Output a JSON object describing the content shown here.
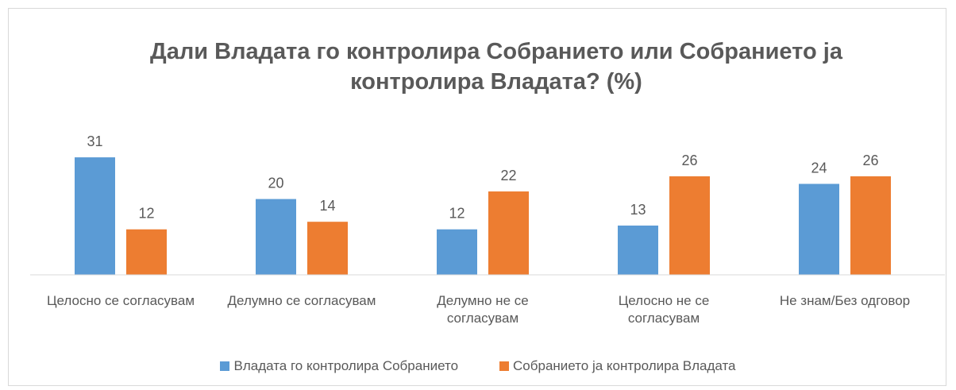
{
  "chart_data": {
    "type": "bar",
    "title": "Дали Владата го контролира Собранието или Собранието ја контролира Владата? (%)",
    "categories": [
      "Целосно се согласувам",
      "Делумно се согласувам",
      "Делумно не се согласувам",
      "Целосно не се согласувам",
      "Не знам/Без одговор"
    ],
    "series": [
      {
        "name": "Владата го контролира Собранието",
        "color": "#5b9bd5",
        "values": [
          31,
          20,
          12,
          13,
          24
        ]
      },
      {
        "name": "Собранието ја контролира Владата",
        "color": "#ed7d31",
        "values": [
          12,
          14,
          22,
          26,
          26
        ]
      }
    ],
    "ylim": [
      0,
      35
    ],
    "legend": "bottom"
  }
}
